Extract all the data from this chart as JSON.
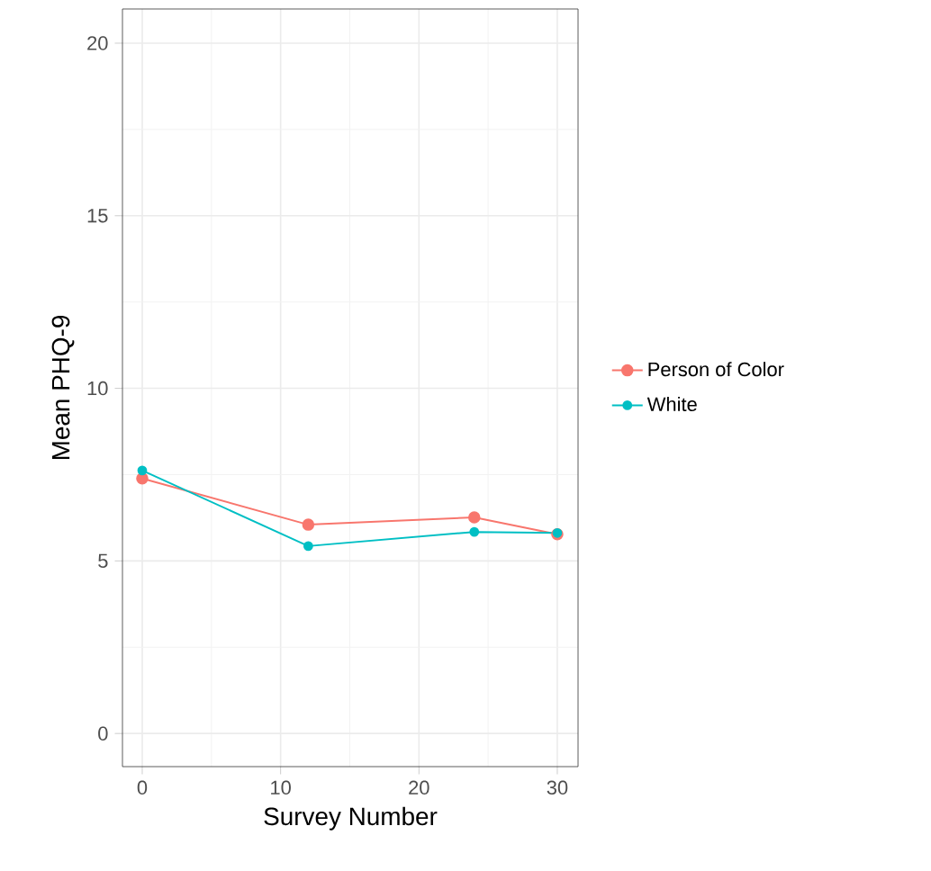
{
  "chart_data": {
    "type": "line",
    "xlabel": "Survey Number",
    "ylabel": "Mean PHQ-9",
    "x": [
      0,
      12,
      24,
      30
    ],
    "series": [
      {
        "name": "Person of Color",
        "color": "#f8766d",
        "values": [
          7.39,
          6.05,
          6.26,
          5.77
        ]
      },
      {
        "name": "White",
        "color": "#00bfc4",
        "values": [
          7.62,
          5.43,
          5.84,
          5.81
        ]
      }
    ],
    "xlim": [
      -1.43,
      31.5
    ],
    "ylim": [
      -0.96,
      20.99
    ],
    "xticks": [
      0,
      10,
      20,
      30
    ],
    "yticks": [
      0,
      5,
      10,
      15,
      20
    ],
    "grid": true,
    "legend": "right",
    "marker": "circle",
    "line_style": "solid"
  }
}
